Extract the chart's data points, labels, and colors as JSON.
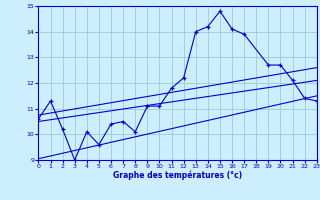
{
  "xlabel": "Graphe des températures (°c)",
  "bg_color": "#cceeff",
  "line_color": "#0000cc",
  "grid_color": "#99cccc",
  "ylim": [
    9,
    15
  ],
  "xlim": [
    0,
    23
  ],
  "yticks": [
    9,
    10,
    11,
    12,
    13,
    14,
    15
  ],
  "xticks": [
    0,
    1,
    2,
    3,
    4,
    5,
    6,
    7,
    8,
    9,
    10,
    11,
    12,
    13,
    14,
    15,
    16,
    17,
    18,
    19,
    20,
    21,
    22,
    23
  ],
  "temp_x": [
    0,
    1,
    2,
    3,
    4,
    5,
    6,
    7,
    8,
    9,
    10,
    11,
    12,
    13,
    14,
    15,
    16,
    17,
    19,
    20,
    21,
    22,
    23
  ],
  "temp_y": [
    10.6,
    11.3,
    10.2,
    9.0,
    10.1,
    9.6,
    10.4,
    10.5,
    10.1,
    11.1,
    11.1,
    11.8,
    12.2,
    14.0,
    14.2,
    14.8,
    14.1,
    13.9,
    12.7,
    12.7,
    12.1,
    11.4,
    11.3
  ],
  "line1_x": [
    0,
    23
  ],
  "line1_y": [
    10.75,
    12.6
  ],
  "line2_x": [
    0,
    23
  ],
  "line2_y": [
    10.5,
    12.1
  ],
  "line3_x": [
    0,
    23
  ],
  "line3_y": [
    9.05,
    11.5
  ]
}
